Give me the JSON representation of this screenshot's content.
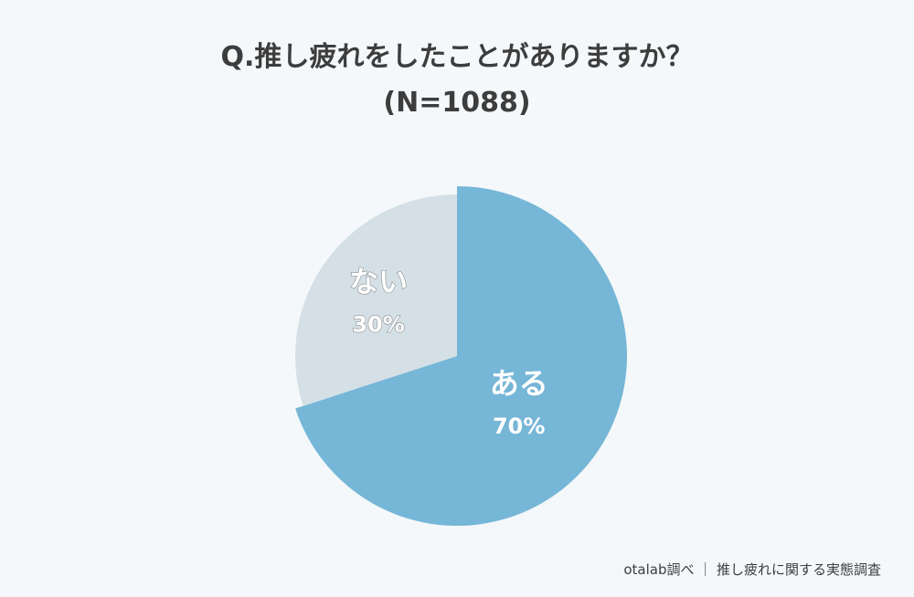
{
  "chart_data": {
    "type": "pie",
    "title": "Q.推し疲れをしたことがありますか？",
    "subtitle": "(N=1088)",
    "slices": [
      {
        "label": "ある",
        "value": 70,
        "value_label": "70%",
        "color": "#76b6d7",
        "label_color": "#ffffff"
      },
      {
        "label": "ない",
        "value": 30,
        "value_label": "30%",
        "color": "#d5e0e6",
        "label_color": "#ffffff"
      }
    ]
  },
  "source": "otalab調べ ｜ 推し疲れに関する実態調査"
}
